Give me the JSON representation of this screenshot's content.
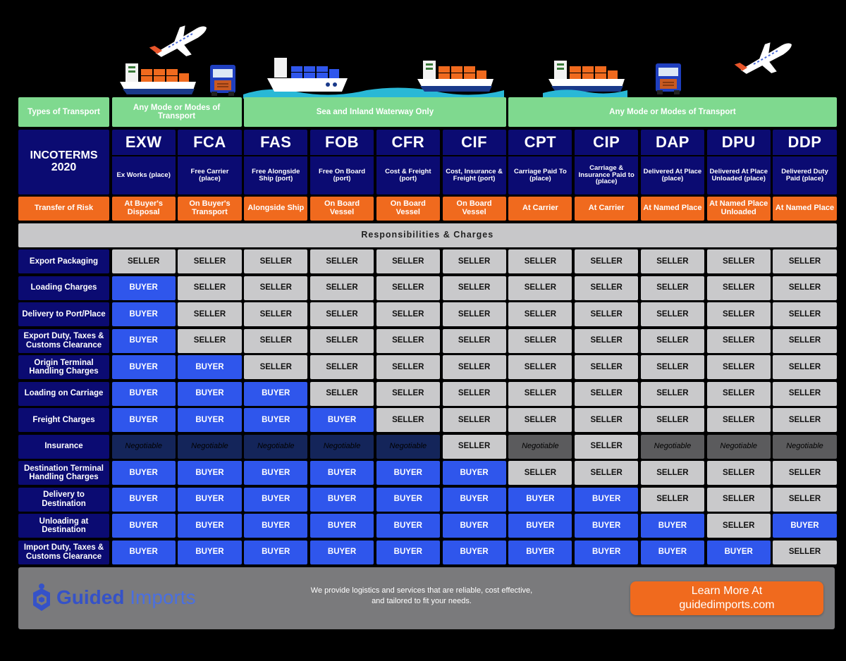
{
  "transport_row": {
    "label": "Types of Transport",
    "group_any_1": "Any Mode or Modes of Transport",
    "group_sea": "Sea and Inland Waterway Only",
    "group_any_2": "Any Mode or Modes of Transport"
  },
  "incoterms_title": "INCOTERMS 2020",
  "terms": [
    {
      "code": "EXW",
      "name": "Ex Works (place)",
      "risk": "At Buyer's Disposal"
    },
    {
      "code": "FCA",
      "name": "Free Carrier (place)",
      "risk": "On Buyer's Transport"
    },
    {
      "code": "FAS",
      "name": "Free Alongside Ship (port)",
      "risk": "Alongside Ship"
    },
    {
      "code": "FOB",
      "name": "Free On Board (port)",
      "risk": "On Board Vessel"
    },
    {
      "code": "CFR",
      "name": "Cost & Freight (port)",
      "risk": "On Board Vessel"
    },
    {
      "code": "CIF",
      "name": "Cost, Insurance & Freight (port)",
      "risk": "On Board Vessel"
    },
    {
      "code": "CPT",
      "name": "Carriage Paid To (place)",
      "risk": "At Carrier"
    },
    {
      "code": "CIP",
      "name": "Carriage & Insurance Paid to (place)",
      "risk": "At Carrier"
    },
    {
      "code": "DAP",
      "name": "Delivered At Place (place)",
      "risk": "At Named Place"
    },
    {
      "code": "DPU",
      "name": "Delivered At Place Unloaded (place)",
      "risk": "At Named Place Unloaded"
    },
    {
      "code": "DDP",
      "name": "Delivered Duty Paid (place)",
      "risk": "At Named Place"
    }
  ],
  "risk_label": "Transfer of Risk",
  "section_title": "Responsibilities & Charges",
  "rows": [
    {
      "label": "Export Packaging",
      "values": [
        "SELLER",
        "SELLER",
        "SELLER",
        "SELLER",
        "SELLER",
        "SELLER",
        "SELLER",
        "SELLER",
        "SELLER",
        "SELLER",
        "SELLER"
      ]
    },
    {
      "label": "Loading Charges",
      "values": [
        "BUYER",
        "SELLER",
        "SELLER",
        "SELLER",
        "SELLER",
        "SELLER",
        "SELLER",
        "SELLER",
        "SELLER",
        "SELLER",
        "SELLER"
      ]
    },
    {
      "label": "Delivery to Port/Place",
      "values": [
        "BUYER",
        "SELLER",
        "SELLER",
        "SELLER",
        "SELLER",
        "SELLER",
        "SELLER",
        "SELLER",
        "SELLER",
        "SELLER",
        "SELLER"
      ]
    },
    {
      "label": "Export Duty, Taxes & Customs Clearance",
      "values": [
        "BUYER",
        "SELLER",
        "SELLER",
        "SELLER",
        "SELLER",
        "SELLER",
        "SELLER",
        "SELLER",
        "SELLER",
        "SELLER",
        "SELLER"
      ]
    },
    {
      "label": "Origin Terminal Handling Charges",
      "values": [
        "BUYER",
        "BUYER",
        "SELLER",
        "SELLER",
        "SELLER",
        "SELLER",
        "SELLER",
        "SELLER",
        "SELLER",
        "SELLER",
        "SELLER"
      ]
    },
    {
      "label": "Loading on Carriage",
      "values": [
        "BUYER",
        "BUYER",
        "BUYER",
        "SELLER",
        "SELLER",
        "SELLER",
        "SELLER",
        "SELLER",
        "SELLER",
        "SELLER",
        "SELLER"
      ]
    },
    {
      "label": "Freight Charges",
      "values": [
        "BUYER",
        "BUYER",
        "BUYER",
        "BUYER",
        "SELLER",
        "SELLER",
        "SELLER",
        "SELLER",
        "SELLER",
        "SELLER",
        "SELLER"
      ]
    },
    {
      "label": "Insurance",
      "values": [
        "Negotiable",
        "Negotiable",
        "Negotiable",
        "Negotiable",
        "Negotiable",
        "SELLER",
        "Negotiable",
        "SELLER",
        "Negotiable",
        "Negotiable",
        "Negotiable"
      ]
    },
    {
      "label": "Destination Terminal Handling Charges",
      "values": [
        "BUYER",
        "BUYER",
        "BUYER",
        "BUYER",
        "BUYER",
        "BUYER",
        "SELLER",
        "SELLER",
        "SELLER",
        "SELLER",
        "SELLER"
      ]
    },
    {
      "label": "Delivery to Destination",
      "values": [
        "BUYER",
        "BUYER",
        "BUYER",
        "BUYER",
        "BUYER",
        "BUYER",
        "BUYER",
        "BUYER",
        "SELLER",
        "SELLER",
        "SELLER"
      ]
    },
    {
      "label": "Unloading at Destination",
      "values": [
        "BUYER",
        "BUYER",
        "BUYER",
        "BUYER",
        "BUYER",
        "BUYER",
        "BUYER",
        "BUYER",
        "BUYER",
        "SELLER",
        "BUYER"
      ]
    },
    {
      "label": "Import Duty, Taxes & Customs Clearance",
      "values": [
        "BUYER",
        "BUYER",
        "BUYER",
        "BUYER",
        "BUYER",
        "BUYER",
        "BUYER",
        "BUYER",
        "BUYER",
        "BUYER",
        "SELLER"
      ]
    }
  ],
  "footer": {
    "brand_bold": "Guided",
    "brand_light": " Imports",
    "tagline_line1": "We provide logistics and services that are reliable, cost effective,",
    "tagline_line2": "and tailored to fit your needs.",
    "cta_line1": "Learn More At",
    "cta_line2": "guidedimports.com"
  },
  "colors": {
    "seller": "#c9c9cb",
    "buyer": "#2f56ec",
    "negotiable_sea": "#14255a",
    "negotiable_any": "#5b5b5d",
    "navy": "#0b0b72",
    "orange": "#f06a1e",
    "green": "#7fd98f"
  }
}
